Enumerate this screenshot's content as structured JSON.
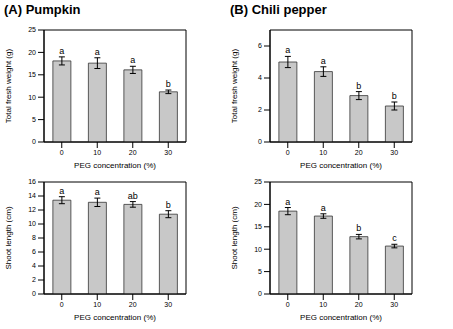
{
  "chart_data": [
    {
      "type": "bar",
      "title": "(A) Pumpkin",
      "x_label": "PEG concentration (%)",
      "y_label": "Total fresh weight (g)",
      "categories": [
        "0",
        "10",
        "20",
        "30"
      ],
      "values": [
        18.1,
        17.6,
        16.1,
        11.2
      ],
      "errors": [
        0.9,
        1.2,
        0.8,
        0.4
      ],
      "annotations": [
        "a",
        "a",
        "a",
        "b"
      ],
      "color": "#c8c8c8",
      "ylim": [
        0,
        25
      ],
      "yticks": [
        0,
        5,
        10,
        15,
        20,
        25
      ]
    },
    {
      "type": "bar",
      "x_label": "PEG concentration (%)",
      "y_label": "Shoot length (cm)",
      "categories": [
        "0",
        "10",
        "20",
        "30"
      ],
      "values": [
        13.4,
        13.1,
        12.8,
        11.4
      ],
      "errors": [
        0.5,
        0.6,
        0.4,
        0.5
      ],
      "annotations": [
        "a",
        "a",
        "ab",
        "b"
      ],
      "color": "#c8c8c8",
      "ylim": [
        0,
        16
      ],
      "yticks": [
        0,
        2,
        4,
        6,
        8,
        10,
        12,
        14,
        16
      ]
    },
    {
      "type": "bar",
      "title": "(B) Chili pepper",
      "x_label": "PEG concentration (%)",
      "y_label": "Total fresh weight (g)",
      "categories": [
        "0",
        "10",
        "20",
        "30"
      ],
      "values": [
        5.0,
        4.4,
        2.9,
        2.25
      ],
      "errors": [
        0.35,
        0.3,
        0.25,
        0.25
      ],
      "annotations": [
        "a",
        "a",
        "b",
        "b"
      ],
      "color": "#c8c8c8",
      "ylim": [
        0,
        7
      ],
      "yticks": [
        0,
        2,
        4,
        6
      ]
    },
    {
      "type": "bar",
      "x_label": "PEG concentration (%)",
      "y_label": "Shoot length (cm)",
      "categories": [
        "0",
        "10",
        "20",
        "30"
      ],
      "values": [
        18.5,
        17.4,
        12.8,
        10.7
      ],
      "errors": [
        0.8,
        0.5,
        0.5,
        0.4
      ],
      "annotations": [
        "a",
        "a",
        "b",
        "c"
      ],
      "color": "#c8c8c8",
      "ylim": [
        0,
        25
      ],
      "yticks": [
        0,
        5,
        10,
        15,
        20,
        25
      ]
    }
  ]
}
